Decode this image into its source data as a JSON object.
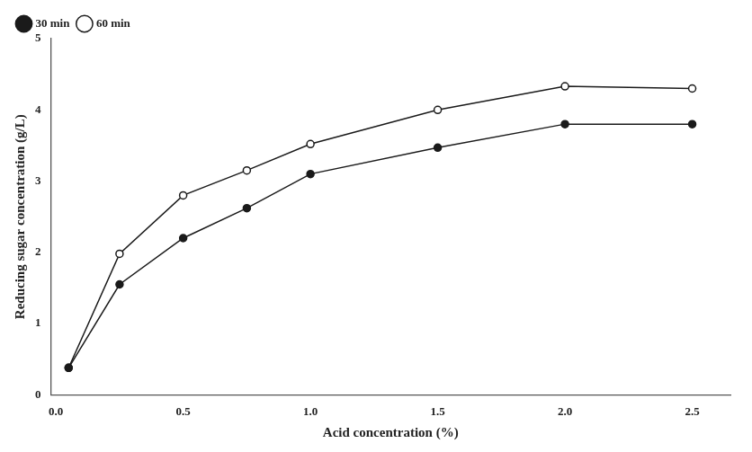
{
  "chart_data": {
    "type": "line",
    "x_label": "Acid concentration (%)",
    "y_label": "Reducing sugar concentration (g/L)",
    "x": [
      0.05,
      0.25,
      0.5,
      0.75,
      1.0,
      1.5,
      2.0,
      2.5
    ],
    "series": [
      {
        "name": "30 min",
        "color": "#1a1a1a",
        "marker": "circle",
        "line_style": "solid",
        "values": [
          0.38,
          1.55,
          2.2,
          2.62,
          3.1,
          3.47,
          3.8,
          3.8
        ]
      },
      {
        "name": "60 min",
        "color": "#1a1a1a",
        "marker": "open_circle",
        "line_style": "solid",
        "values": [
          0.38,
          1.98,
          2.8,
          3.15,
          3.52,
          4.0,
          4.33,
          4.3
        ]
      }
    ],
    "xlim": [
      -0.02,
      2.65
    ],
    "xticks": [
      {
        "value": 0.0,
        "label": "0.0"
      },
      0.5,
      {
        "value": 1.0,
        "label": "1.0"
      },
      1.5,
      {
        "value": 2.0,
        "label": "2.0"
      },
      2.5
    ],
    "ylim": [
      0,
      5
    ],
    "yticks": [
      0,
      1,
      2,
      3,
      4,
      5
    ],
    "grid": false,
    "legend": "upper left"
  }
}
